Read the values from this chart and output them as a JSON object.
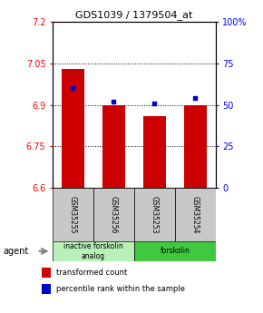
{
  "title": "GDS1039 / 1379504_at",
  "samples": [
    "GSM35255",
    "GSM35256",
    "GSM35253",
    "GSM35254"
  ],
  "red_values": [
    7.03,
    6.9,
    6.86,
    6.9
  ],
  "blue_values": [
    60,
    52,
    51,
    54
  ],
  "ylim_left": [
    6.6,
    7.2
  ],
  "ylim_right": [
    0,
    100
  ],
  "yticks_left": [
    6.6,
    6.75,
    6.9,
    7.05,
    7.2
  ],
  "ytick_labels_left": [
    "6.6",
    "6.75",
    "6.9",
    "7.05",
    "7.2"
  ],
  "yticks_right": [
    0,
    25,
    50,
    75,
    100
  ],
  "ytick_labels_right": [
    "0",
    "25",
    "50",
    "75",
    "100%"
  ],
  "groups": [
    {
      "label": "inactive forskolin\nanalog",
      "indices": [
        0,
        1
      ],
      "color": "#b8f0b8"
    },
    {
      "label": "forskolin",
      "indices": [
        2,
        3
      ],
      "color": "#40c840"
    }
  ],
  "bar_color": "#cc0000",
  "dot_color": "#0000cc",
  "background_color": "#ffffff",
  "bar_width": 0.55,
  "legend_red": "transformed count",
  "legend_blue": "percentile rank within the sample",
  "agent_label": "agent",
  "sample_box_color": "#c8c8c8"
}
